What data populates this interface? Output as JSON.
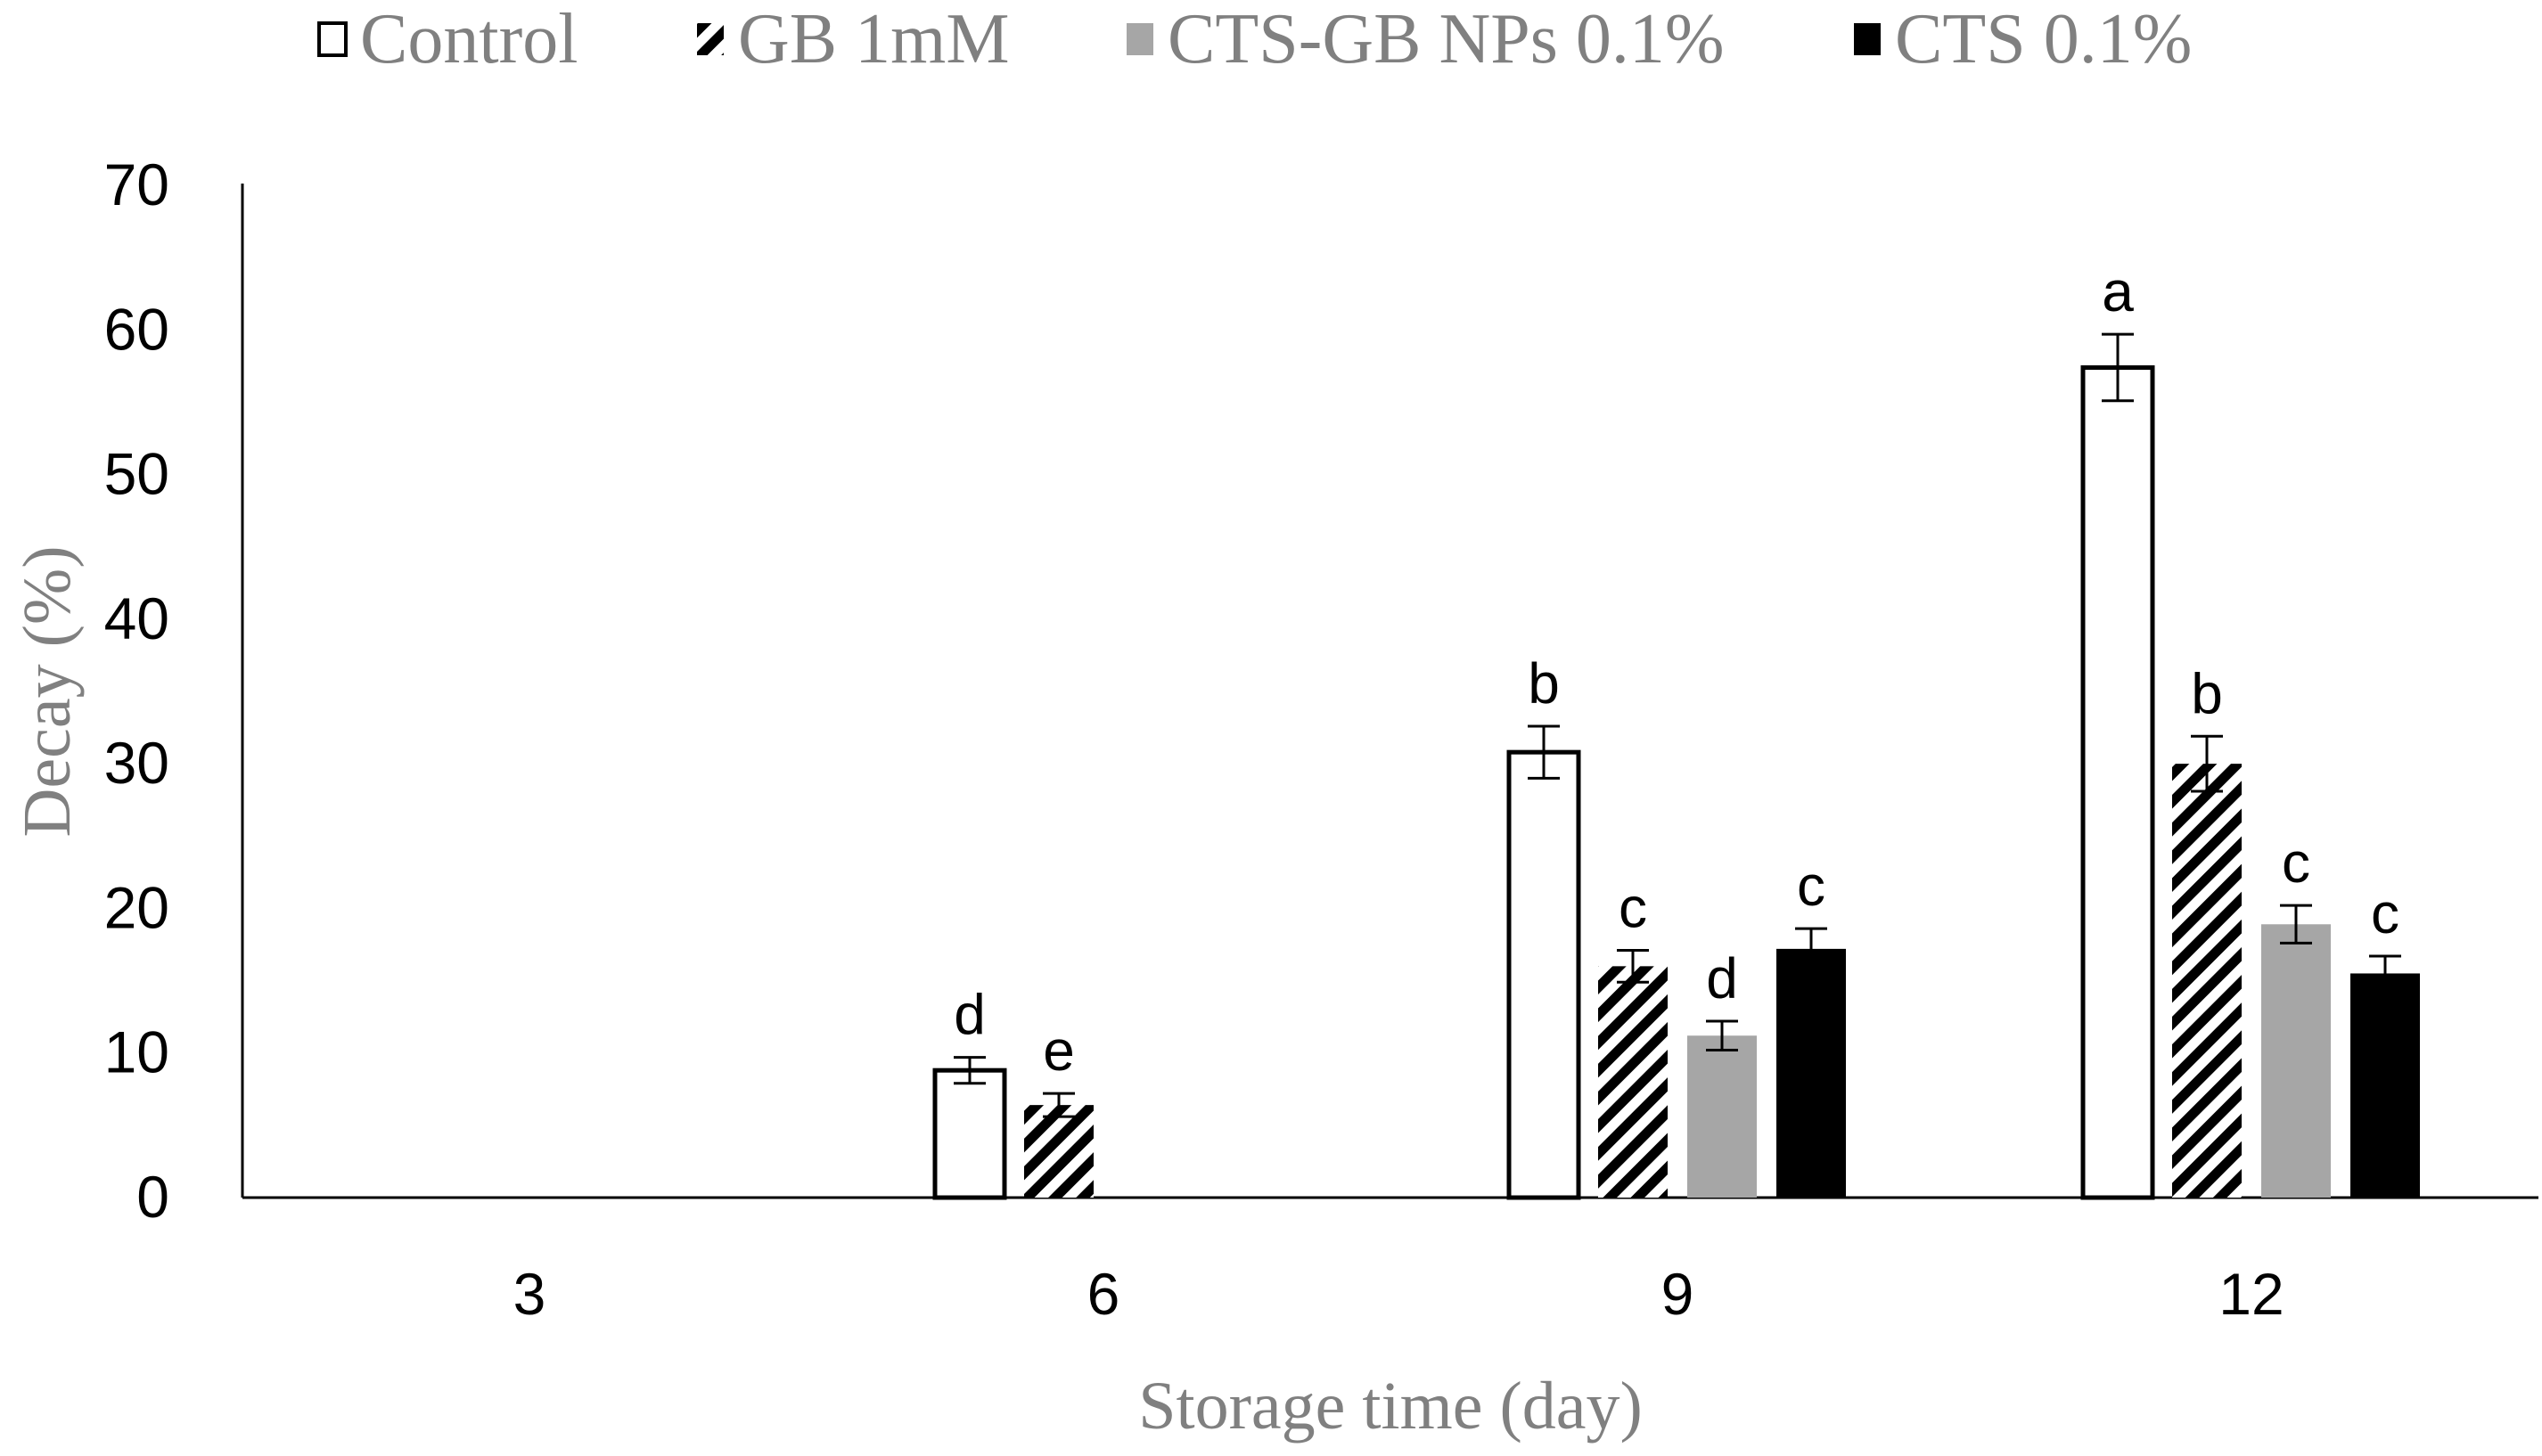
{
  "chart_data": {
    "type": "bar",
    "title": "",
    "xlabel": "Storage time (day)",
    "ylabel": "Decay (%)",
    "ylim": [
      0,
      70
    ],
    "yticks": [
      "0",
      "10",
      "20",
      "30",
      "40",
      "50",
      "60",
      "70"
    ],
    "categories": [
      "3",
      "6",
      "9",
      "12"
    ],
    "legend_position": "top",
    "grid": false,
    "series": [
      {
        "name": "Control",
        "pattern": "white",
        "values": [
          0,
          8.8,
          30.8,
          57.4
        ],
        "errors": [
          0,
          0.9,
          1.8,
          2.3
        ],
        "labels": [
          "",
          "d",
          "b",
          "a"
        ]
      },
      {
        "name": "GB 1mM",
        "pattern": "hatched",
        "values": [
          0,
          6.4,
          16.0,
          30.0
        ],
        "errors": [
          0,
          0.8,
          1.1,
          1.9
        ],
        "labels": [
          "",
          "e",
          "c",
          "b"
        ]
      },
      {
        "name": "CTS-GB NPs 0.1%",
        "pattern": "gray",
        "values": [
          0,
          0,
          11.2,
          18.9
        ],
        "errors": [
          0,
          0,
          1.0,
          1.3
        ],
        "labels": [
          "",
          "",
          "d",
          "c"
        ]
      },
      {
        "name": "CTS 0.1%",
        "pattern": "black",
        "values": [
          0,
          0,
          17.2,
          15.5
        ],
        "errors": [
          0,
          0,
          1.4,
          1.2
        ],
        "labels": [
          "",
          "",
          "c",
          "c"
        ]
      }
    ]
  },
  "colors": {
    "gray_fill": "#a6a6a6",
    "black_fill": "#000000",
    "white_fill": "#ffffff",
    "axis_text": "#808080"
  }
}
